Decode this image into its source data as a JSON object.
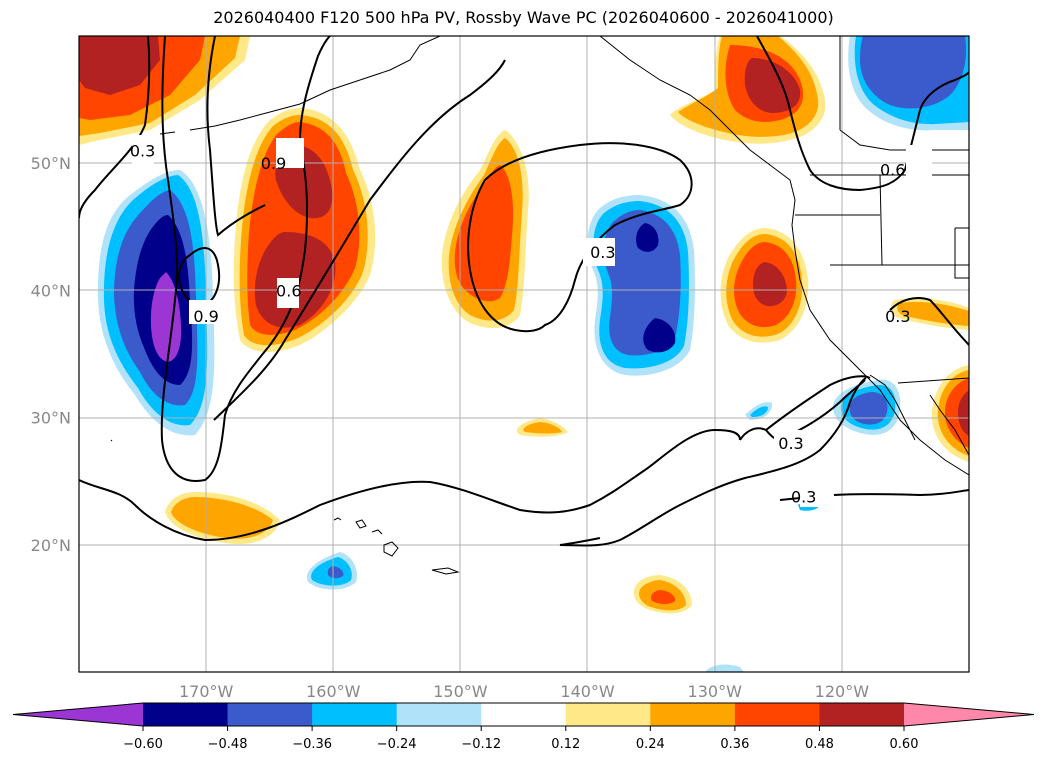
{
  "chart_data": {
    "type": "heatmap",
    "title": "2026040400 F120 500 hPa PV, Rossby Wave PC (2026040600 - 2026041000)",
    "lon_range": [
      -180,
      -110
    ],
    "lat_range": [
      10,
      60
    ],
    "lon_ticks": [
      {
        "value": -170,
        "label": "170°W"
      },
      {
        "value": -160,
        "label": "160°W"
      },
      {
        "value": -150,
        "label": "150°W"
      },
      {
        "value": -140,
        "label": "140°W"
      },
      {
        "value": -130,
        "label": "130°W"
      },
      {
        "value": -120,
        "label": "120°W"
      }
    ],
    "lat_ticks": [
      {
        "value": 20,
        "label": "20°N"
      },
      {
        "value": 30,
        "label": "30°N"
      },
      {
        "value": 40,
        "label": "40°N"
      },
      {
        "value": 50,
        "label": "50°N"
      }
    ],
    "colorbar": {
      "levels": [
        "−0.60",
        "−0.48",
        "−0.36",
        "−0.24",
        "−0.12",
        "0.12",
        "0.24",
        "0.36",
        "0.48",
        "0.60"
      ],
      "colors": [
        "#9b35d4",
        "#00008b",
        "#3b5bcc",
        "#00bfff",
        "#b0e2fa",
        "#ffffff",
        "#ffe887",
        "#ffa500",
        "#ff4500",
        "#b22222",
        "#ff88aa"
      ]
    },
    "contour_labels": [
      {
        "text": "0.3",
        "lon": -175,
        "lat": 51
      },
      {
        "text": "0.9",
        "lon": -164.7,
        "lat": 50
      },
      {
        "text": "0.9",
        "lon": -170,
        "lat": 38
      },
      {
        "text": "0.6",
        "lon": -163.5,
        "lat": 40
      },
      {
        "text": "0.3",
        "lon": -138.8,
        "lat": 43
      },
      {
        "text": "0.6",
        "lon": -116,
        "lat": 49.5
      },
      {
        "text": "0.3",
        "lon": -115.6,
        "lat": 38
      },
      {
        "text": "0.3",
        "lon": -124,
        "lat": 28
      },
      {
        "text": "0.3",
        "lon": -123,
        "lat": 23.8
      }
    ]
  }
}
